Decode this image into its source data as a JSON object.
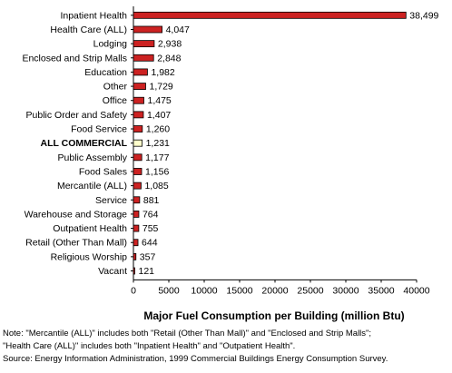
{
  "chart_data": {
    "type": "bar",
    "orientation": "horizontal",
    "title": "",
    "xlabel": "Major Fuel Consumption per Building (million Btu)",
    "ylabel": "",
    "xlim": [
      0,
      40000
    ],
    "xticks": [
      "0",
      "5000",
      "10000",
      "15000",
      "20000",
      "25000",
      "30000",
      "35000",
      "40000"
    ],
    "categories": [
      "Inpatient Health",
      "Health Care (ALL)",
      "Lodging",
      "Enclosed and Strip Malls",
      "Education",
      "Other",
      "Office",
      "Public Order and Safety",
      "Food Service",
      "ALL COMMERCIAL",
      "Public Assembly",
      "Food Sales",
      "Mercantile (ALL)",
      "Service",
      "Warehouse and Storage",
      "Outpatient Health",
      "Retail (Other Than Mall)",
      "Religious Worship",
      "Vacant"
    ],
    "values": [
      38499,
      4047,
      2938,
      2848,
      1982,
      1729,
      1475,
      1407,
      1260,
      1231,
      1177,
      1156,
      1085,
      881,
      764,
      755,
      644,
      357,
      121
    ],
    "value_labels": [
      "38,499",
      "4,047",
      "2,938",
      "2,848",
      "1,982",
      "1,729",
      "1,475",
      "1,407",
      "1,260",
      "1,231",
      "1,177",
      "1,156",
      "1,085",
      "881",
      "764",
      "755",
      "644",
      "357",
      "121"
    ],
    "highlight_category": "ALL COMMERCIAL",
    "colors": {
      "bar": "#cc2222",
      "highlight_bar": "#ffffcc",
      "bar_stroke": "#000000"
    },
    "grid": false,
    "legend": "none"
  },
  "notes": {
    "line1": "Note: \"Mercantile (ALL)\" includes both \"Retail (Other Than Mall)\" and \"Enclosed and Strip Malls\";",
    "line2": "\"Health Care (ALL)\" includes both \"Inpatient Health\" and \"Outpatient Health\".",
    "source": "Source: Energy Information Administration, 1999 Commercial Buildings Energy Consumption Survey."
  }
}
